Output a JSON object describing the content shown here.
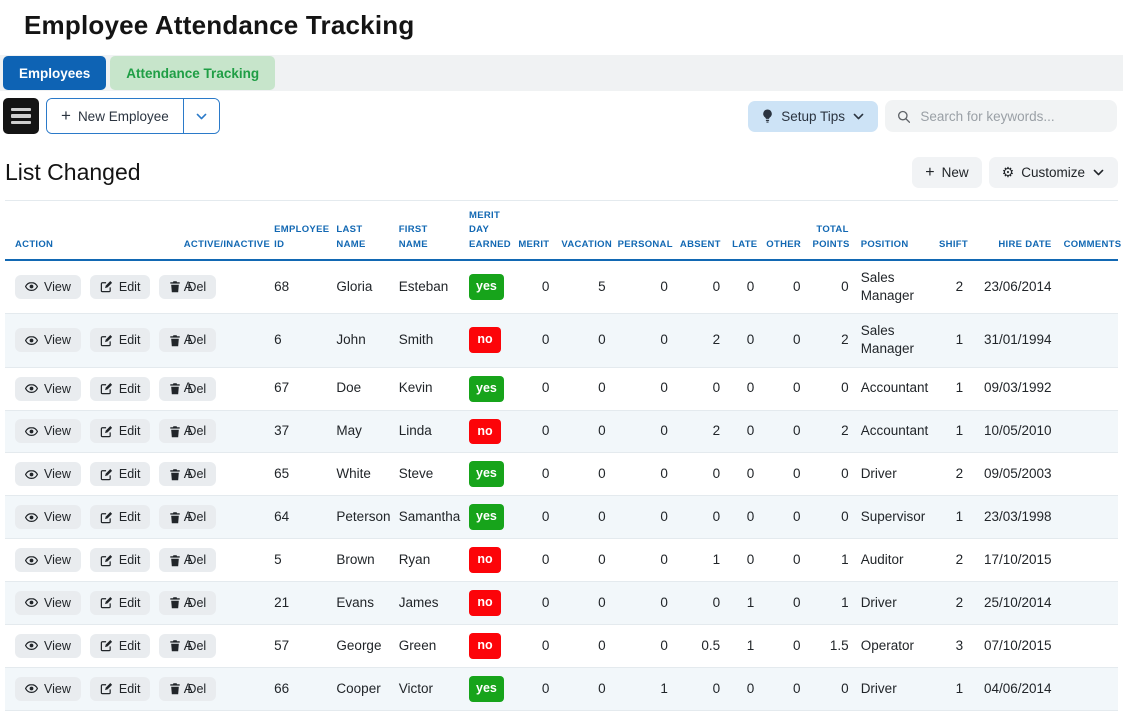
{
  "page": {
    "title": "Employee Attendance Tracking"
  },
  "tabs": [
    {
      "label": "Employees",
      "active": true
    },
    {
      "label": "Attendance Tracking",
      "active": false
    }
  ],
  "toolbar": {
    "new_employee_label": "New Employee",
    "setup_tips_label": "Setup Tips",
    "search_placeholder": "Search for keywords..."
  },
  "list_header": {
    "title": "List Changed",
    "new_label": "New",
    "customize_label": "Customize"
  },
  "colors": {
    "active_tab": "#0e63b4",
    "secondary_tab_bg": "#c7e5cb",
    "secondary_tab_text": "#1f9e45",
    "table_header_text": "#1268b3",
    "badge_yes": "#17a41b",
    "badge_no": "#fc0409",
    "alt_row": "#f2f7fa"
  },
  "table": {
    "columns": [
      "ACTION",
      "ACTIVE/INACTIVE",
      "EMPLOYEE ID",
      "LAST NAME",
      "FIRST NAME",
      "MERIT DAY EARNED",
      "MERIT",
      "VACATION",
      "PERSONAL",
      "ABSENT",
      "LATE",
      "OTHER",
      "TOTAL POINTS",
      "POSITION",
      "SHIFT",
      "HIRE DATE",
      "COMMENTS"
    ],
    "action_buttons": [
      "View",
      "Edit",
      "Del"
    ],
    "rows": [
      {
        "active": "A",
        "employee_id": "68",
        "last_name": "Gloria",
        "first_name": "Esteban",
        "merit_day_earned": "yes",
        "merit": "0",
        "vacation": "5",
        "personal": "0",
        "absent": "0",
        "late": "0",
        "other": "0",
        "total_points": "0",
        "position": "Sales Manager",
        "shift": "2",
        "hire_date": "23/06/2014",
        "comments": ""
      },
      {
        "active": "A",
        "employee_id": "6",
        "last_name": "John",
        "first_name": "Smith",
        "merit_day_earned": "no",
        "merit": "0",
        "vacation": "0",
        "personal": "0",
        "absent": "2",
        "late": "0",
        "other": "0",
        "total_points": "2",
        "position": "Sales Manager",
        "shift": "1",
        "hire_date": "31/01/1994",
        "comments": ""
      },
      {
        "active": "A",
        "employee_id": "67",
        "last_name": "Doe",
        "first_name": "Kevin",
        "merit_day_earned": "yes",
        "merit": "0",
        "vacation": "0",
        "personal": "0",
        "absent": "0",
        "late": "0",
        "other": "0",
        "total_points": "0",
        "position": "Accountant",
        "shift": "1",
        "hire_date": "09/03/1992",
        "comments": ""
      },
      {
        "active": "A",
        "employee_id": "37",
        "last_name": "May",
        "first_name": "Linda",
        "merit_day_earned": "no",
        "merit": "0",
        "vacation": "0",
        "personal": "0",
        "absent": "2",
        "late": "0",
        "other": "0",
        "total_points": "2",
        "position": "Accountant",
        "shift": "1",
        "hire_date": "10/05/2010",
        "comments": ""
      },
      {
        "active": "A",
        "employee_id": "65",
        "last_name": "White",
        "first_name": "Steve",
        "merit_day_earned": "yes",
        "merit": "0",
        "vacation": "0",
        "personal": "0",
        "absent": "0",
        "late": "0",
        "other": "0",
        "total_points": "0",
        "position": "Driver",
        "shift": "2",
        "hire_date": "09/05/2003",
        "comments": ""
      },
      {
        "active": "A",
        "employee_id": "64",
        "last_name": "Peterson",
        "first_name": "Samantha",
        "merit_day_earned": "yes",
        "merit": "0",
        "vacation": "0",
        "personal": "0",
        "absent": "0",
        "late": "0",
        "other": "0",
        "total_points": "0",
        "position": "Supervisor",
        "shift": "1",
        "hire_date": "23/03/1998",
        "comments": ""
      },
      {
        "active": "A",
        "employee_id": "5",
        "last_name": "Brown",
        "first_name": "Ryan",
        "merit_day_earned": "no",
        "merit": "0",
        "vacation": "0",
        "personal": "0",
        "absent": "1",
        "late": "0",
        "other": "0",
        "total_points": "1",
        "position": "Auditor",
        "shift": "2",
        "hire_date": "17/10/2015",
        "comments": ""
      },
      {
        "active": "A",
        "employee_id": "21",
        "last_name": "Evans",
        "first_name": "James",
        "merit_day_earned": "no",
        "merit": "0",
        "vacation": "0",
        "personal": "0",
        "absent": "0",
        "late": "1",
        "other": "0",
        "total_points": "1",
        "position": "Driver",
        "shift": "2",
        "hire_date": "25/10/2014",
        "comments": ""
      },
      {
        "active": "A",
        "employee_id": "57",
        "last_name": "George",
        "first_name": "Green",
        "merit_day_earned": "no",
        "merit": "0",
        "vacation": "0",
        "personal": "0",
        "absent": "0.5",
        "late": "1",
        "other": "0",
        "total_points": "1.5",
        "position": "Operator",
        "shift": "3",
        "hire_date": "07/10/2015",
        "comments": ""
      },
      {
        "active": "A",
        "employee_id": "66",
        "last_name": "Cooper",
        "first_name": "Victor",
        "merit_day_earned": "yes",
        "merit": "0",
        "vacation": "0",
        "personal": "1",
        "absent": "0",
        "late": "0",
        "other": "0",
        "total_points": "0",
        "position": "Driver",
        "shift": "1",
        "hire_date": "04/06/2014",
        "comments": ""
      }
    ]
  }
}
